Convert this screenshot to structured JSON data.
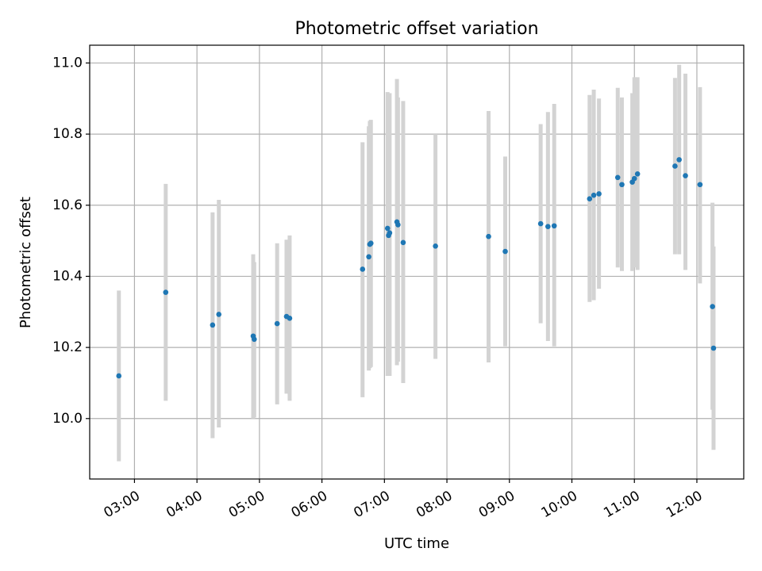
{
  "chart_data": {
    "type": "scatter",
    "title": "Photometric offset variation",
    "xlabel": "UTC time",
    "ylabel": "Photometric offset",
    "xlim": [
      "02:17",
      "12:45"
    ],
    "ylim": [
      9.83,
      11.05
    ],
    "x_ticks": [
      "03:00",
      "04:00",
      "05:00",
      "06:00",
      "07:00",
      "08:00",
      "09:00",
      "10:00",
      "11:00",
      "12:00"
    ],
    "y_ticks": [
      "10.0",
      "10.2",
      "10.4",
      "10.6",
      "10.8",
      "11.0"
    ],
    "grid": true,
    "colors": {
      "points": "#1f77b4",
      "error_bars": "#d3d3d3",
      "grid": "#b0b0b0"
    },
    "points": [
      {
        "x": "02:45",
        "y": 10.12,
        "ylow": 9.88,
        "yhigh": 10.36
      },
      {
        "x": "03:30",
        "y": 10.355,
        "ylow": 10.05,
        "yhigh": 10.66
      },
      {
        "x": "04:15",
        "y": 10.263,
        "ylow": 9.945,
        "yhigh": 10.58
      },
      {
        "x": "04:21",
        "y": 10.293,
        "ylow": 9.975,
        "yhigh": 10.615
      },
      {
        "x": "04:54",
        "y": 10.232,
        "ylow": 10.0,
        "yhigh": 10.462
      },
      {
        "x": "04:55",
        "y": 10.223,
        "ylow": 10.003,
        "yhigh": 10.44
      },
      {
        "x": "05:17",
        "y": 10.267,
        "ylow": 10.04,
        "yhigh": 10.493
      },
      {
        "x": "05:26",
        "y": 10.287,
        "ylow": 10.07,
        "yhigh": 10.503
      },
      {
        "x": "05:29",
        "y": 10.282,
        "ylow": 10.05,
        "yhigh": 10.515
      },
      {
        "x": "06:39",
        "y": 10.42,
        "ylow": 10.06,
        "yhigh": 10.777
      },
      {
        "x": "06:45",
        "y": 10.455,
        "ylow": 10.135,
        "yhigh": 10.822
      },
      {
        "x": "06:46",
        "y": 10.49,
        "ylow": 10.142,
        "yhigh": 10.837
      },
      {
        "x": "06:47",
        "y": 10.493,
        "ylow": 10.145,
        "yhigh": 10.84
      },
      {
        "x": "07:03",
        "y": 10.535,
        "ylow": 10.12,
        "yhigh": 10.918
      },
      {
        "x": "07:04",
        "y": 10.515,
        "ylow": 10.12,
        "yhigh": 10.915
      },
      {
        "x": "07:05",
        "y": 10.522,
        "ylow": 10.12,
        "yhigh": 10.915
      },
      {
        "x": "07:12",
        "y": 10.553,
        "ylow": 10.15,
        "yhigh": 10.955
      },
      {
        "x": "07:13",
        "y": 10.545,
        "ylow": 10.16,
        "yhigh": 10.903
      },
      {
        "x": "07:18",
        "y": 10.495,
        "ylow": 10.1,
        "yhigh": 10.893
      },
      {
        "x": "07:49",
        "y": 10.485,
        "ylow": 10.168,
        "yhigh": 10.8
      },
      {
        "x": "08:40",
        "y": 10.512,
        "ylow": 10.158,
        "yhigh": 10.865
      },
      {
        "x": "08:56",
        "y": 10.47,
        "ylow": 10.203,
        "yhigh": 10.737
      },
      {
        "x": "09:30",
        "y": 10.548,
        "ylow": 10.268,
        "yhigh": 10.828
      },
      {
        "x": "09:37",
        "y": 10.54,
        "ylow": 10.218,
        "yhigh": 10.862
      },
      {
        "x": "09:43",
        "y": 10.542,
        "ylow": 10.203,
        "yhigh": 10.885
      },
      {
        "x": "10:17",
        "y": 10.618,
        "ylow": 10.328,
        "yhigh": 10.91
      },
      {
        "x": "10:21",
        "y": 10.628,
        "ylow": 10.333,
        "yhigh": 10.925
      },
      {
        "x": "10:26",
        "y": 10.632,
        "ylow": 10.365,
        "yhigh": 10.9
      },
      {
        "x": "10:44",
        "y": 10.678,
        "ylow": 10.425,
        "yhigh": 10.93
      },
      {
        "x": "10:48",
        "y": 10.658,
        "ylow": 10.415,
        "yhigh": 10.903
      },
      {
        "x": "10:58",
        "y": 10.665,
        "ylow": 10.415,
        "yhigh": 10.915
      },
      {
        "x": "11:00",
        "y": 10.675,
        "ylow": 10.425,
        "yhigh": 10.96
      },
      {
        "x": "11:03",
        "y": 10.688,
        "ylow": 10.418,
        "yhigh": 10.96
      },
      {
        "x": "11:39",
        "y": 10.71,
        "ylow": 10.462,
        "yhigh": 10.958
      },
      {
        "x": "11:43",
        "y": 10.728,
        "ylow": 10.462,
        "yhigh": 10.995
      },
      {
        "x": "11:49",
        "y": 10.683,
        "ylow": 10.418,
        "yhigh": 10.97
      },
      {
        "x": "12:03",
        "y": 10.658,
        "ylow": 10.38,
        "yhigh": 10.932
      },
      {
        "x": "12:15",
        "y": 10.315,
        "ylow": 10.025,
        "yhigh": 10.607
      },
      {
        "x": "12:16",
        "y": 10.198,
        "ylow": 9.912,
        "yhigh": 10.484
      }
    ]
  }
}
